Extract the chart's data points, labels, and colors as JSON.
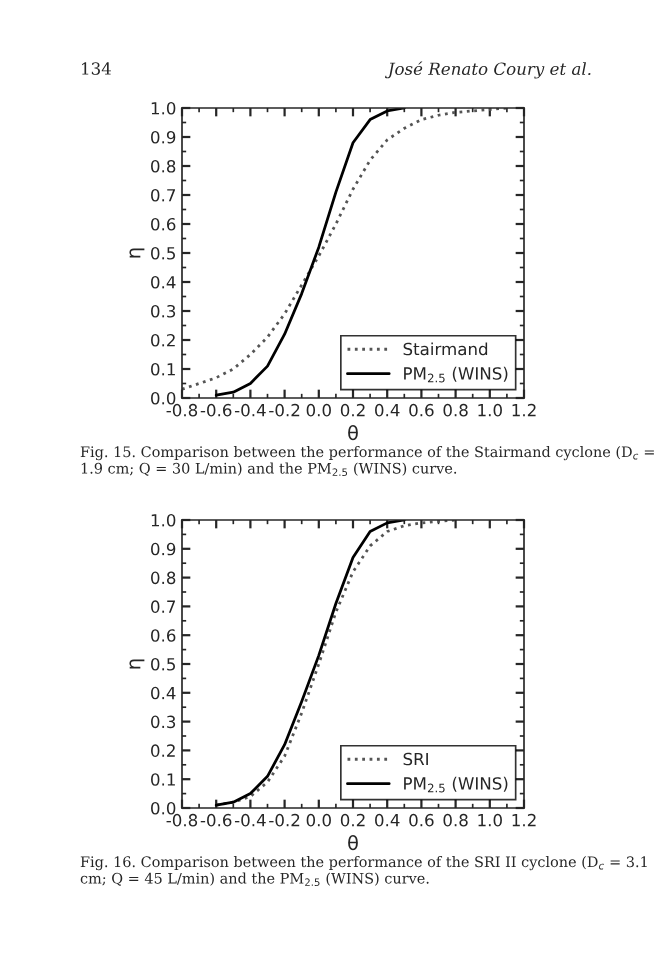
{
  "chart_data": [
    {
      "type": "line",
      "xlabel": "θ",
      "ylabel": "η",
      "xlim": [
        -0.8,
        1.2
      ],
      "ylim": [
        0.0,
        1.0
      ],
      "xticks": [
        {
          "value": -0.8,
          "label": "-0.8"
        },
        {
          "value": -0.6,
          "label": "-0.6"
        },
        {
          "value": -0.4,
          "label": "-0.4"
        },
        {
          "value": -0.2,
          "label": "-0.2"
        },
        {
          "value": 0.0,
          "label": "0.0"
        },
        {
          "value": 0.2,
          "label": "0.2"
        },
        {
          "value": 0.4,
          "label": "0.4"
        },
        {
          "value": 0.6,
          "label": "0.6"
        },
        {
          "value": 0.8,
          "label": "0.8"
        },
        {
          "value": 1.0,
          "label": "1.0"
        },
        {
          "value": 1.2,
          "label": "1.2"
        }
      ],
      "yticks": [
        {
          "value": 0.0,
          "label": "0.0"
        },
        {
          "value": 0.1,
          "label": "0.1"
        },
        {
          "value": 0.2,
          "label": "0.2"
        },
        {
          "value": 0.3,
          "label": "0.3"
        },
        {
          "value": 0.4,
          "label": "0.4"
        },
        {
          "value": 0.5,
          "label": "0.5"
        },
        {
          "value": 0.6,
          "label": "0.6"
        },
        {
          "value": 0.7,
          "label": "0.7"
        },
        {
          "value": 0.8,
          "label": "0.8"
        },
        {
          "value": 0.9,
          "label": "0.9"
        },
        {
          "value": 1.0,
          "label": "1.0"
        }
      ],
      "legend": "bottom right",
      "grid": false,
      "series": [
        {
          "name": "Stairmand",
          "color": "#555555",
          "line_style": "dotted",
          "x": [
            -0.8,
            -0.7,
            -0.6,
            -0.5,
            -0.4,
            -0.3,
            -0.2,
            -0.1,
            0.0,
            0.1,
            0.2,
            0.3,
            0.4,
            0.5,
            0.6,
            0.7,
            0.8,
            0.9,
            1.0,
            1.1
          ],
          "values": [
            0.03,
            0.05,
            0.07,
            0.1,
            0.15,
            0.21,
            0.29,
            0.39,
            0.49,
            0.6,
            0.72,
            0.82,
            0.89,
            0.93,
            0.96,
            0.975,
            0.985,
            0.99,
            0.995,
            1.0
          ]
        },
        {
          "name": "PM$_{2.5}$ (WINS)",
          "color": "#000000",
          "line_style": "solid",
          "x": [
            -0.6,
            -0.5,
            -0.4,
            -0.3,
            -0.2,
            -0.1,
            0.0,
            0.1,
            0.2,
            0.3,
            0.4,
            0.5
          ],
          "values": [
            0.01,
            0.02,
            0.05,
            0.11,
            0.22,
            0.36,
            0.52,
            0.71,
            0.88,
            0.96,
            0.99,
            1.0
          ]
        }
      ],
      "annotations": [
        "134",
        "José Renato Coury et al.",
        "Fig. 15. Comparison between the performance of the Stairmand cyclone (D$_{c}$ = 1.9 cm; Q = 30 L/min) and the PM$_{2.5}$ (WINS) curve."
      ]
    },
    {
      "type": "line",
      "xlabel": "θ",
      "ylabel": "η",
      "xlim": [
        -0.8,
        1.2
      ],
      "ylim": [
        0.0,
        1.0
      ],
      "xticks": [
        {
          "value": -0.8,
          "label": "-0.8"
        },
        {
          "value": -0.6,
          "label": "-0.6"
        },
        {
          "value": -0.4,
          "label": "-0.4"
        },
        {
          "value": -0.2,
          "label": "-0.2"
        },
        {
          "value": 0.0,
          "label": "0.0"
        },
        {
          "value": 0.2,
          "label": "0.2"
        },
        {
          "value": 0.4,
          "label": "0.4"
        },
        {
          "value": 0.6,
          "label": "0.6"
        },
        {
          "value": 0.8,
          "label": "0.8"
        },
        {
          "value": 1.0,
          "label": "1.0"
        },
        {
          "value": 1.2,
          "label": "1.2"
        }
      ],
      "yticks": [
        {
          "value": 0.0,
          "label": "0.0"
        },
        {
          "value": 0.1,
          "label": "0.1"
        },
        {
          "value": 0.2,
          "label": "0.2"
        },
        {
          "value": 0.3,
          "label": "0.3"
        },
        {
          "value": 0.4,
          "label": "0.4"
        },
        {
          "value": 0.5,
          "label": "0.5"
        },
        {
          "value": 0.6,
          "label": "0.6"
        },
        {
          "value": 0.7,
          "label": "0.7"
        },
        {
          "value": 0.8,
          "label": "0.8"
        },
        {
          "value": 0.9,
          "label": "0.9"
        },
        {
          "value": 1.0,
          "label": "1.0"
        }
      ],
      "legend": "bottom right",
      "grid": false,
      "series": [
        {
          "name": "SRI",
          "color": "#555555",
          "line_style": "dotted",
          "x": [
            -0.6,
            -0.5,
            -0.4,
            -0.3,
            -0.2,
            -0.1,
            0.0,
            0.1,
            0.2,
            0.3,
            0.4,
            0.5,
            0.6,
            0.7,
            0.8
          ],
          "values": [
            0.01,
            0.02,
            0.04,
            0.09,
            0.18,
            0.33,
            0.5,
            0.68,
            0.82,
            0.91,
            0.96,
            0.98,
            0.99,
            0.995,
            1.0
          ]
        },
        {
          "name": "PM$_{2.5}$ (WINS)",
          "color": "#000000",
          "line_style": "solid",
          "x": [
            -0.6,
            -0.5,
            -0.4,
            -0.3,
            -0.2,
            -0.1,
            0.0,
            0.1,
            0.2,
            0.3,
            0.4,
            0.5
          ],
          "values": [
            0.01,
            0.02,
            0.05,
            0.11,
            0.22,
            0.37,
            0.53,
            0.71,
            0.87,
            0.96,
            0.99,
            1.0
          ]
        }
      ],
      "annotations": [
        "Fig. 16. Comparison between the performance of the SRI II cyclone (D$_{c}$ = 3.1 cm; Q = 45 L/min) and the PM$_{2.5}$ (WINS) curve."
      ]
    }
  ]
}
